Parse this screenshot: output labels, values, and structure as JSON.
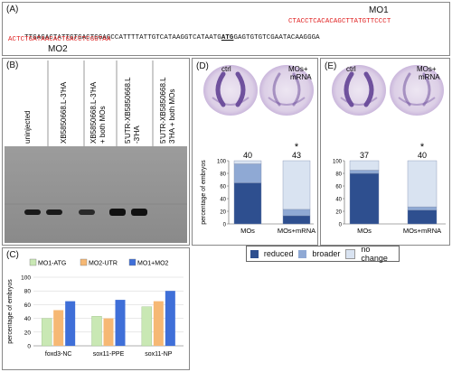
{
  "panelA": {
    "label": "(A)",
    "mo1_label": "MO1",
    "mo2_label": "MO2",
    "seq_red_top": "CTACCTCACACAGCTTATGTTCCCT",
    "seq_line1_pre": "TTGAGACTATTGTGACTGGAGCCATTTTATTGTCATAAGGTCATAATG",
    "seq_line1_atg": "ATG",
    "seq_line1_post": "GAGTGTGTCGAATACAAGGGA",
    "seq_red_bottom": "ACTCTGATAACACTGACCTCGGTAA"
  },
  "panelB": {
    "label": "(B)",
    "lanes": [
      "uninjected",
      "XB5850668.L-3'HA",
      "XB5850668.L-3'HA + both MOs",
      "5'UTR-XB5850668.L-3'HA",
      "5'UTR-XB5850668.L-3'HA + both MOs"
    ]
  },
  "panelC": {
    "label": "(C)",
    "colors": {
      "mo1": "#c9e8b4",
      "mo2": "#f6b874",
      "both": "#3f6fd8"
    },
    "chart_data": {
      "type": "bar",
      "categories": [
        "foxd3-NC",
        "sox11-PPE",
        "sox11-NP"
      ],
      "series": [
        {
          "name": "MO1-ATG",
          "values": [
            40,
            43,
            57
          ]
        },
        {
          "name": "MO2-UTR",
          "values": [
            52,
            40,
            65
          ]
        },
        {
          "name": "MO1+MO2",
          "values": [
            65,
            67,
            80
          ]
        }
      ],
      "ylabel": "percentage of embryos",
      "ylim": [
        0,
        100
      ],
      "yticks": [
        0,
        20,
        40,
        60,
        80,
        100
      ]
    }
  },
  "panelD": {
    "label": "(D)",
    "ctrl": "ctrl",
    "mos_mrna": "MOs+ mRNA",
    "counts": [
      "40",
      "43"
    ],
    "star": "*",
    "chart_data": {
      "type": "bar",
      "stacked": true,
      "categories": [
        "MOs",
        "MOs+mRNA"
      ],
      "series": [
        {
          "name": "reduced",
          "values": [
            65,
            13
          ]
        },
        {
          "name": "broader",
          "values": [
            30,
            10
          ]
        },
        {
          "name": "no change",
          "values": [
            5,
            77
          ]
        }
      ],
      "ylabel": "percentage of embryos",
      "ylim": [
        0,
        100
      ],
      "yticks": [
        0,
        20,
        40,
        60,
        80,
        100
      ]
    }
  },
  "panelE": {
    "label": "(E)",
    "ctrl": "ctrl",
    "mos_mrna": "MOs+ mRNA",
    "counts": [
      "37",
      "40"
    ],
    "star": "*",
    "chart_data": {
      "type": "bar",
      "stacked": true,
      "categories": [
        "MOs",
        "MOs+mRNA"
      ],
      "series": [
        {
          "name": "reduced",
          "values": [
            80,
            22
          ]
        },
        {
          "name": "broader",
          "values": [
            5,
            5
          ]
        },
        {
          "name": "no change",
          "values": [
            15,
            73
          ]
        }
      ],
      "ylabel": "percentage of embryos",
      "ylim": [
        0,
        100
      ],
      "yticks": [
        0,
        20,
        40,
        60,
        80,
        100
      ]
    }
  },
  "legendDE": {
    "items": [
      "reduced",
      "broader",
      "no change"
    ],
    "colors": [
      "#2e4f8f",
      "#8fa9d4",
      "#d9e3f1"
    ]
  }
}
